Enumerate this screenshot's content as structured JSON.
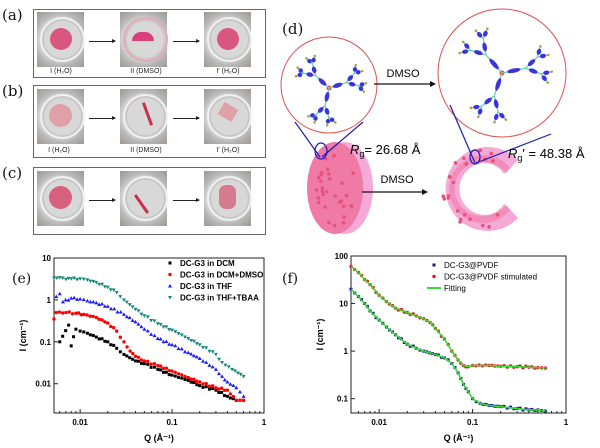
{
  "panels": {
    "a": {
      "label": "(a)",
      "captions": [
        "I (H₂O)",
        "II (DMSO)",
        "I' (H₂O)"
      ]
    },
    "b": {
      "label": "(b)",
      "captions": [
        "I (H₂O)",
        "II (DMSO)",
        "I' (H₂O)"
      ]
    },
    "c": {
      "label": "(c)"
    },
    "d": {
      "label": "(d)",
      "arrow_top": "DMSO",
      "arrow_bottom": "DMSO",
      "rg_left": "= 26.68 Å",
      "rg_right": "' = 48.38 Å",
      "rg_symbol": "R",
      "rg_sub": "g"
    },
    "e": {
      "label": "(e)"
    },
    "f": {
      "label": "(f)"
    }
  },
  "colors": {
    "gel_pink": "#f07aa6",
    "gel_light": "#f5a9d6",
    "circle": "#e05050",
    "zoom_lines": "#1a1ab0",
    "molecule": "#3a35d8"
  },
  "chart_data": [
    {
      "type": "scatter",
      "xlabel": "Q (Å⁻¹)",
      "ylabel": "I (cm⁻¹)",
      "xscale": "log",
      "yscale": "log",
      "xlim": [
        0.0052,
        1
      ],
      "ylim": [
        0.002,
        10
      ],
      "xticks": [
        "0.01",
        "0.1",
        "1"
      ],
      "yticks": [
        "0.01",
        "0.1",
        "1",
        "10"
      ],
      "grid": false,
      "legend": "top-right",
      "series": [
        {
          "name": "DC-G3 in DCM",
          "color": "#000000",
          "marker": "square",
          "points": [
            [
              0.006,
              0.1
            ],
            [
              0.0075,
              0.25
            ],
            [
              0.008,
              0.08
            ],
            [
              0.009,
              0.2
            ],
            [
              0.01,
              0.18
            ],
            [
              0.012,
              0.16
            ],
            [
              0.015,
              0.13
            ],
            [
              0.02,
              0.1
            ],
            [
              0.025,
              0.07
            ],
            [
              0.03,
              0.05
            ],
            [
              0.04,
              0.035
            ],
            [
              0.05,
              0.03
            ],
            [
              0.07,
              0.022
            ],
            [
              0.1,
              0.016
            ],
            [
              0.15,
              0.012
            ],
            [
              0.2,
              0.009
            ],
            [
              0.3,
              0.007
            ],
            [
              0.4,
              0.005
            ],
            [
              0.5,
              0.004
            ],
            [
              0.6,
              0.004
            ]
          ]
        },
        {
          "name": "DC-G3 in DCM+DMSO",
          "color": "#ff0000",
          "marker": "circle",
          "points": [
            [
              0.0052,
              0.35
            ],
            [
              0.0055,
              0.5
            ],
            [
              0.007,
              0.5
            ],
            [
              0.009,
              0.48
            ],
            [
              0.011,
              0.45
            ],
            [
              0.015,
              0.38
            ],
            [
              0.02,
              0.28
            ],
            [
              0.025,
              0.18
            ],
            [
              0.03,
              0.1
            ],
            [
              0.035,
              0.06
            ],
            [
              0.04,
              0.045
            ],
            [
              0.05,
              0.035
            ],
            [
              0.07,
              0.027
            ],
            [
              0.1,
              0.02
            ],
            [
              0.15,
              0.014
            ],
            [
              0.2,
              0.011
            ],
            [
              0.3,
              0.008
            ],
            [
              0.4,
              0.007
            ],
            [
              0.5,
              0.004
            ],
            [
              0.6,
              0.004
            ]
          ]
        },
        {
          "name": "DC-G3 in THF",
          "color": "#1a1aff",
          "marker": "triangle-up",
          "points": [
            [
              0.0055,
              1.2
            ],
            [
              0.006,
              1.4
            ],
            [
              0.0065,
              0.9
            ],
            [
              0.008,
              1.1
            ],
            [
              0.01,
              1.05
            ],
            [
              0.012,
              0.95
            ],
            [
              0.015,
              0.85
            ],
            [
              0.02,
              0.7
            ],
            [
              0.03,
              0.45
            ],
            [
              0.04,
              0.3
            ],
            [
              0.05,
              0.2
            ],
            [
              0.07,
              0.12
            ],
            [
              0.1,
              0.085
            ],
            [
              0.15,
              0.055
            ],
            [
              0.2,
              0.04
            ],
            [
              0.3,
              0.022
            ],
            [
              0.35,
              0.015
            ],
            [
              0.4,
              0.011
            ],
            [
              0.5,
              0.008
            ],
            [
              0.6,
              0.005
            ]
          ]
        },
        {
          "name": "DC-G3 in THF+TBAA",
          "color": "#138a7a",
          "marker": "triangle-down",
          "points": [
            [
              0.0052,
              3.3
            ],
            [
              0.006,
              3.4
            ],
            [
              0.007,
              3.1
            ],
            [
              0.008,
              3.2
            ],
            [
              0.01,
              3.2
            ],
            [
              0.012,
              3.0
            ],
            [
              0.015,
              2.6
            ],
            [
              0.02,
              2.0
            ],
            [
              0.025,
              1.5
            ],
            [
              0.03,
              1.0
            ],
            [
              0.04,
              0.6
            ],
            [
              0.05,
              0.42
            ],
            [
              0.07,
              0.27
            ],
            [
              0.1,
              0.19
            ],
            [
              0.15,
              0.12
            ],
            [
              0.2,
              0.085
            ],
            [
              0.3,
              0.05
            ],
            [
              0.35,
              0.032
            ],
            [
              0.45,
              0.022
            ],
            [
              0.6,
              0.015
            ]
          ]
        }
      ]
    },
    {
      "type": "scatter",
      "xlabel": "Q (Å⁻¹)",
      "ylabel": "I (cm⁻¹)",
      "xscale": "log",
      "yscale": "log",
      "xlim": [
        0.005,
        1
      ],
      "ylim": [
        0.05,
        100
      ],
      "xticks": [
        "0.01",
        "0.1",
        "1"
      ],
      "yticks": [
        "0.1",
        "1",
        "10",
        "100"
      ],
      "grid": false,
      "legend": "top-right",
      "series": [
        {
          "name": "DC-G3@PVDF",
          "color": "#1a1a8c",
          "marker": "square",
          "points": [
            [
              0.005,
              20
            ],
            [
              0.006,
              14
            ],
            [
              0.007,
              10
            ],
            [
              0.008,
              7
            ],
            [
              0.01,
              4.5
            ],
            [
              0.012,
              3.2
            ],
            [
              0.015,
              2.2
            ],
            [
              0.02,
              1.4
            ],
            [
              0.025,
              1.15
            ],
            [
              0.03,
              1.0
            ],
            [
              0.04,
              0.85
            ],
            [
              0.05,
              0.72
            ],
            [
              0.06,
              0.55
            ],
            [
              0.07,
              0.35
            ],
            [
              0.08,
              0.2
            ],
            [
              0.09,
              0.14
            ],
            [
              0.1,
              0.1
            ],
            [
              0.12,
              0.08
            ],
            [
              0.15,
              0.072
            ],
            [
              0.2,
              0.068
            ],
            [
              0.3,
              0.062
            ],
            [
              0.4,
              0.058
            ],
            [
              0.5,
              0.058
            ],
            [
              0.6,
              0.055
            ]
          ]
        },
        {
          "name": "DC-G3@PVDF stimulated",
          "color": "#e8141e",
          "marker": "circle",
          "points": [
            [
              0.005,
              60
            ],
            [
              0.006,
              45
            ],
            [
              0.007,
              32
            ],
            [
              0.008,
              25
            ],
            [
              0.01,
              15
            ],
            [
              0.012,
              11
            ],
            [
              0.015,
              8
            ],
            [
              0.02,
              6.5
            ],
            [
              0.025,
              5.5
            ],
            [
              0.03,
              4.8
            ],
            [
              0.035,
              4
            ],
            [
              0.04,
              3
            ],
            [
              0.05,
              1.8
            ],
            [
              0.06,
              1.0
            ],
            [
              0.07,
              0.65
            ],
            [
              0.08,
              0.5
            ],
            [
              0.09,
              0.47
            ],
            [
              0.1,
              0.5
            ],
            [
              0.15,
              0.5
            ],
            [
              0.2,
              0.48
            ],
            [
              0.3,
              0.47
            ],
            [
              0.4,
              0.46
            ],
            [
              0.5,
              0.45
            ],
            [
              0.6,
              0.44
            ]
          ]
        },
        {
          "name": "Fitting",
          "color": "#33dd33",
          "marker": "line",
          "fits": [
            "DC-G3@PVDF",
            "DC-G3@PVDF stimulated"
          ]
        }
      ]
    }
  ]
}
